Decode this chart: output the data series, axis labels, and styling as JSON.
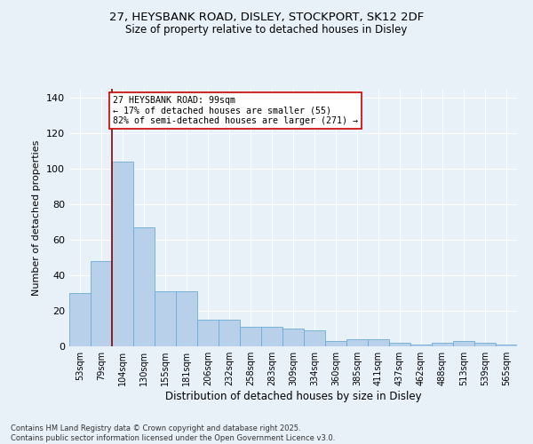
{
  "title_line1": "27, HEYSBANK ROAD, DISLEY, STOCKPORT, SK12 2DF",
  "title_line2": "Size of property relative to detached houses in Disley",
  "xlabel": "Distribution of detached houses by size in Disley",
  "ylabel": "Number of detached properties",
  "categories": [
    "53sqm",
    "79sqm",
    "104sqm",
    "130sqm",
    "155sqm",
    "181sqm",
    "206sqm",
    "232sqm",
    "258sqm",
    "283sqm",
    "309sqm",
    "334sqm",
    "360sqm",
    "385sqm",
    "411sqm",
    "437sqm",
    "462sqm",
    "488sqm",
    "513sqm",
    "539sqm",
    "565sqm"
  ],
  "values": [
    30,
    48,
    104,
    67,
    31,
    31,
    15,
    15,
    11,
    11,
    10,
    9,
    3,
    4,
    4,
    2,
    1,
    2,
    3,
    2,
    1
  ],
  "bar_color": "#b8d0ea",
  "bar_edge_color": "#6aadd5",
  "background_color": "#e8f0f8",
  "grid_color": "#ffffff",
  "vline_color": "#8b0000",
  "vline_x": 1.5,
  "annotation_text": "27 HEYSBANK ROAD: 99sqm\n← 17% of detached houses are smaller (55)\n82% of semi-detached houses are larger (271) →",
  "annotation_box_color": "#ffffff",
  "annotation_box_edge": "#cc0000",
  "footer_line1": "Contains HM Land Registry data © Crown copyright and database right 2025.",
  "footer_line2": "Contains public sector information licensed under the Open Government Licence v3.0.",
  "ylim": [
    0,
    145
  ],
  "yticks": [
    0,
    20,
    40,
    60,
    80,
    100,
    120,
    140
  ]
}
